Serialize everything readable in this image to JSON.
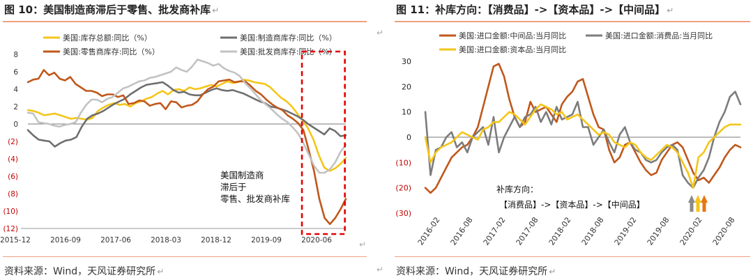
{
  "left": {
    "title": "图 10：美国制造商滞后于零售、批发商补库",
    "source": "资料来源：Wind，天风证券研究所",
    "chart_data": {
      "type": "line",
      "x_ticks": [
        "2015-12",
        "2016-09",
        "2017-06",
        "2018-03",
        "2018-12",
        "2019-09",
        "2020-06"
      ],
      "ylim": [
        -12,
        8
      ],
      "y_ticks": [
        8,
        6,
        4,
        2,
        0,
        -2,
        -4,
        -6,
        -8,
        -10,
        -12
      ],
      "y_tick_labels": [
        "8",
        "6",
        "4",
        "2",
        "0",
        "(2)",
        "(4)",
        "(6)",
        "(8)",
        "(10)",
        "(12)"
      ],
      "legend": [
        "美国:库存总额:同比（%）",
        "美国:制造商库存:同比（%）",
        "美国:零售商库存:同比（%）",
        "美国:批发商库存:同比（%）"
      ],
      "series": [
        {
          "name": "美国:库存总额:同比（%）",
          "color": "#f5c518",
          "values": [
            1.6,
            1.5,
            1.3,
            1.0,
            1.1,
            1.2,
            1.0,
            0.8,
            0.6,
            0.7,
            0.6,
            0.5,
            0.7,
            1.5,
            1.9,
            2.2,
            2.4,
            2.2,
            2.3,
            2.0,
            2.4,
            2.6,
            2.9,
            3.1,
            3.5,
            3.8,
            3.4,
            3.9,
            4.0,
            3.8,
            4.2,
            4.0,
            4.1,
            4.3,
            4.5,
            4.3,
            4.6,
            4.9,
            4.7,
            4.8,
            5.1,
            5.0,
            4.8,
            4.7,
            4.6,
            4.2,
            3.6,
            3.0,
            2.6,
            2.0,
            1.2,
            0.4,
            -0.5,
            -1.8,
            -3.6,
            -5.0,
            -5.4,
            -5.1,
            -4.6,
            -3.9
          ]
        },
        {
          "name": "美国:制造商库存:同比（%）",
          "color": "#6e6e6e",
          "values": [
            -0.7,
            -1.3,
            -1.8,
            -1.9,
            -2.0,
            -2.6,
            -2.2,
            -1.9,
            -1.8,
            -1.5,
            -0.3,
            0.6,
            1.0,
            1.2,
            1.5,
            1.9,
            2.3,
            2.6,
            2.9,
            3.4,
            3.8,
            4.2,
            4.5,
            4.6,
            4.7,
            4.8,
            4.4,
            3.9,
            3.6,
            3.7,
            3.4,
            3.3,
            3.3,
            3.6,
            3.9,
            4.1,
            3.9,
            3.8,
            3.9,
            3.7,
            3.5,
            3.2,
            2.9,
            2.6,
            2.4,
            2.0,
            1.9,
            1.7,
            1.5,
            1.2,
            0.9,
            0.5,
            0.0,
            -0.4,
            -0.8,
            -1.2,
            -0.5,
            -0.8,
            -1.4,
            -1.3
          ]
        },
        {
          "name": "美国:零售商库存:同比（%）",
          "color": "#c0571a",
          "values": [
            4.8,
            5.1,
            5.2,
            6.2,
            5.6,
            5.9,
            5.2,
            5.0,
            5.4,
            4.6,
            4.2,
            3.8,
            3.8,
            3.6,
            3.2,
            3.4,
            3.4,
            3.1,
            3.3,
            2.3,
            2.4,
            2.7,
            2.6,
            2.1,
            2.3,
            2.4,
            1.7,
            2.6,
            2.5,
            1.9,
            2.1,
            2.2,
            2.6,
            3.4,
            4.0,
            4.3,
            4.9,
            5.0,
            5.1,
            4.8,
            4.9,
            4.9,
            4.4,
            3.8,
            3.4,
            2.8,
            2.3,
            1.9,
            1.6,
            1.0,
            0.6,
            0.1,
            -0.7,
            -3.0,
            -5.4,
            -8.6,
            -10.8,
            -11.5,
            -10.8,
            -9.8,
            -8.6
          ]
        },
        {
          "name": "美国:批发商库存:同比（%）",
          "color": "#c2c2c2",
          "values": [
            1.3,
            1.2,
            0.2,
            0.1,
            0.0,
            -0.2,
            -0.3,
            -0.1,
            0.0,
            0.2,
            1.3,
            2.2,
            2.8,
            2.8,
            2.5,
            2.9,
            3.1,
            3.6,
            4.1,
            4.3,
            4.6,
            4.9,
            5.0,
            5.3,
            5.4,
            5.6,
            5.8,
            6.0,
            6.5,
            6.2,
            6.0,
            6.6,
            7.4,
            7.2,
            7.0,
            6.7,
            6.9,
            6.4,
            6.1,
            5.9,
            5.5,
            4.7,
            4.1,
            3.4,
            2.7,
            2.2,
            1.7,
            1.1,
            0.6,
            0.2,
            -0.4,
            -1.1,
            -2.2,
            -3.5,
            -4.8,
            -5.6,
            -5.6,
            -5.2,
            -4.4,
            -3.2,
            -2.4
          ]
        }
      ],
      "annotation": [
        "美国制造商",
        "滞后于",
        "零售、批发商补库"
      ],
      "highlight": {
        "x_from": 0.862,
        "x_to": 0.997
      }
    }
  },
  "right": {
    "title": "图 11：补库方向：【消费品】->【资本品】->【中间品】",
    "source": "资料来源：Wind，天风证券研究所",
    "chart_data": {
      "type": "line",
      "x_ticks": [
        "2016-02",
        "2016-08",
        "2017-02",
        "2017-08",
        "2018-02",
        "2018-08",
        "2019-02",
        "2019-08",
        "2020-02",
        "2020-08"
      ],
      "ylim": [
        -30,
        30
      ],
      "y_ticks": [
        30,
        20,
        10,
        0,
        -10,
        -20,
        -30
      ],
      "y_tick_labels": [
        "30",
        "20",
        "10",
        "0",
        "(10)",
        "(20)",
        "(30)"
      ],
      "legend": [
        "美国:进口金额:中间品:当月同比",
        "美国:进口金额:消费品:当月同比",
        "美国:进口金额:资本品:当月同比"
      ],
      "series": [
        {
          "name": "美国:进口金额:中间品:当月同比",
          "color": "#c0571a",
          "values": [
            -20,
            -22,
            -20,
            -16,
            -12,
            -8,
            -6,
            -4,
            -3,
            0,
            4,
            12,
            20,
            28,
            29,
            24,
            15,
            8,
            4,
            6,
            14,
            10,
            11,
            12,
            9,
            6,
            13,
            16,
            18,
            22,
            23,
            16,
            9,
            4,
            3,
            -5,
            -10,
            -8,
            -3,
            -2,
            -6,
            -10,
            -13,
            -15,
            -14,
            -9,
            -6,
            -3,
            -2,
            -4,
            -9,
            -14,
            -17,
            -16,
            -18,
            -15,
            -12,
            -8,
            -5,
            -3,
            -4
          ]
        },
        {
          "name": "美国:进口金额:消费品:当月同比",
          "color": "#7c7c7c",
          "values": [
            10,
            -15,
            -5,
            -4,
            0,
            2,
            -4,
            -2,
            -6,
            0,
            2,
            4,
            -3,
            8,
            -6,
            0,
            4,
            8,
            4,
            8,
            9,
            12,
            6,
            10,
            5,
            12,
            7,
            8,
            9,
            14,
            4,
            4,
            -3,
            0,
            3,
            -2,
            -6,
            1,
            4,
            -2,
            -5,
            -6,
            -9,
            -10,
            -9,
            -6,
            -4,
            -3,
            -5,
            -15,
            -18,
            -20,
            -16,
            -13,
            -8,
            0,
            6,
            10,
            16,
            18,
            13
          ]
        },
        {
          "name": "美国:进口金额:资本品:当月同比",
          "color": "#f5c518",
          "values": [
            0,
            -10,
            -6,
            -4,
            -3,
            -2,
            0,
            2,
            1,
            0,
            -1,
            3,
            4,
            6,
            6,
            8,
            10,
            9,
            7,
            5,
            8,
            11,
            13,
            12,
            11,
            9,
            10,
            7,
            8,
            9,
            7,
            5,
            3,
            1,
            2,
            1,
            -2,
            -3,
            -4,
            -2,
            -3,
            -6,
            -8,
            -9,
            -7,
            -5,
            -3,
            -4,
            -6,
            -10,
            -14,
            -20,
            -8,
            -6,
            -2,
            0,
            2,
            4,
            5,
            5,
            5
          ]
        }
      ],
      "annotation": [
        "补库方向：",
        "【消费品】->【资本品】->【中间品】"
      ],
      "arrows": [
        {
          "color": "#8a8a8a"
        },
        {
          "color": "#f5c518"
        },
        {
          "color": "#e87510"
        }
      ]
    }
  }
}
